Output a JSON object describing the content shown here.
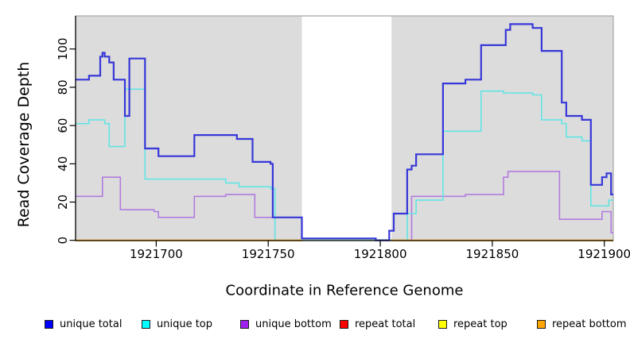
{
  "figure": {
    "ylabel": "Read Coverage Depth",
    "xlabel": "Coordinate in Reference Genome"
  },
  "legend": {
    "items": [
      {
        "label": "unique total",
        "color": "#0000FF"
      },
      {
        "label": "unique top",
        "color": "#00FFFF"
      },
      {
        "label": "unique bottom",
        "color": "#A020F0"
      },
      {
        "label": "repeat total",
        "color": "#FF0000"
      },
      {
        "label": "repeat top",
        "color": "#FFFF00"
      },
      {
        "label": "repeat bottom",
        "color": "#FFA500"
      }
    ]
  },
  "chart_data": {
    "type": "line",
    "subtype": "step",
    "title": "",
    "xlabel": "Coordinate in Reference Genome",
    "ylabel": "Read Coverage Depth",
    "xlim": [
      1921664,
      1921904
    ],
    "ylim": [
      0,
      117
    ],
    "x_ticks": [
      1921700,
      1921750,
      1921800,
      1921850,
      1921900
    ],
    "y_ticks": [
      0,
      20,
      40,
      60,
      80,
      100
    ],
    "grid": false,
    "legend_position": "bottom",
    "plot_bg": "#DCDCDC",
    "panel_border_color": "#999999",
    "highlight_band": {
      "x0": 1921765,
      "x1": 1921805,
      "color": "#FFFFFF"
    },
    "band_zero_line_color": "#98D2A4",
    "series": [
      {
        "name": "unique total",
        "color": "#3737D9",
        "legend_color": "#0000FF",
        "width": 2.2,
        "steps": [
          [
            1921664,
            84
          ],
          [
            1921670,
            86
          ],
          [
            1921675,
            96
          ],
          [
            1921676,
            98
          ],
          [
            1921677,
            96
          ],
          [
            1921679,
            93
          ],
          [
            1921681,
            84
          ],
          [
            1921686,
            65
          ],
          [
            1921688,
            95
          ],
          [
            1921695,
            48
          ],
          [
            1921701,
            44
          ],
          [
            1921717,
            55
          ],
          [
            1921736,
            53
          ],
          [
            1921743,
            41
          ],
          [
            1921751,
            40
          ],
          [
            1921752,
            12
          ],
          [
            1921765,
            1
          ],
          [
            1921798,
            0
          ],
          [
            1921804,
            5
          ],
          [
            1921806,
            14
          ],
          [
            1921812,
            37
          ],
          [
            1921814,
            39
          ],
          [
            1921816,
            45
          ],
          [
            1921828,
            82
          ],
          [
            1921838,
            84
          ],
          [
            1921845,
            102
          ],
          [
            1921856,
            110
          ],
          [
            1921858,
            113
          ],
          [
            1921868,
            111
          ],
          [
            1921872,
            99
          ],
          [
            1921881,
            72
          ],
          [
            1921883,
            65
          ],
          [
            1921890,
            63
          ],
          [
            1921894,
            29
          ],
          [
            1921899,
            33
          ],
          [
            1921901,
            35
          ],
          [
            1921903,
            24
          ]
        ]
      },
      {
        "name": "unique top",
        "color": "#63E4E4",
        "legend_color": "#00FFFF",
        "width": 1.6,
        "steps": [
          [
            1921664,
            61
          ],
          [
            1921670,
            63
          ],
          [
            1921677,
            61
          ],
          [
            1921679,
            49
          ],
          [
            1921686,
            79
          ],
          [
            1921695,
            32
          ],
          [
            1921731,
            30
          ],
          [
            1921737,
            28
          ],
          [
            1921751,
            27
          ],
          [
            1921753,
            0
          ],
          [
            1921812,
            14
          ],
          [
            1921816,
            21
          ],
          [
            1921828,
            57
          ],
          [
            1921845,
            78
          ],
          [
            1921855,
            77
          ],
          [
            1921868,
            76
          ],
          [
            1921872,
            63
          ],
          [
            1921881,
            61
          ],
          [
            1921883,
            54
          ],
          [
            1921890,
            52
          ],
          [
            1921894,
            18
          ],
          [
            1921902,
            21
          ]
        ]
      },
      {
        "name": "unique bottom",
        "color": "#B27BDF",
        "legend_color": "#A020F0",
        "width": 1.6,
        "steps": [
          [
            1921664,
            23
          ],
          [
            1921676,
            33
          ],
          [
            1921684,
            16
          ],
          [
            1921699,
            15
          ],
          [
            1921701,
            12
          ],
          [
            1921717,
            23
          ],
          [
            1921731,
            24
          ],
          [
            1921744,
            12
          ],
          [
            1921753,
            0
          ],
          [
            1921814,
            23
          ],
          [
            1921838,
            24
          ],
          [
            1921855,
            33
          ],
          [
            1921857,
            36
          ],
          [
            1921880,
            11
          ],
          [
            1921899,
            15
          ],
          [
            1921903,
            4
          ]
        ]
      },
      {
        "name": "repeat total",
        "color": "#DD0000",
        "legend_color": "#FF0000",
        "width": 1.5,
        "steps": [
          [
            1921664,
            0
          ]
        ]
      },
      {
        "name": "repeat top",
        "color": "#F0F000",
        "legend_color": "#FFFF00",
        "width": 1.5,
        "steps": [
          [
            1921664,
            0
          ]
        ]
      },
      {
        "name": "repeat bottom",
        "color": "#FFA500",
        "legend_color": "#FFA500",
        "width": 2,
        "steps": [
          [
            1921664,
            0
          ]
        ]
      }
    ]
  }
}
